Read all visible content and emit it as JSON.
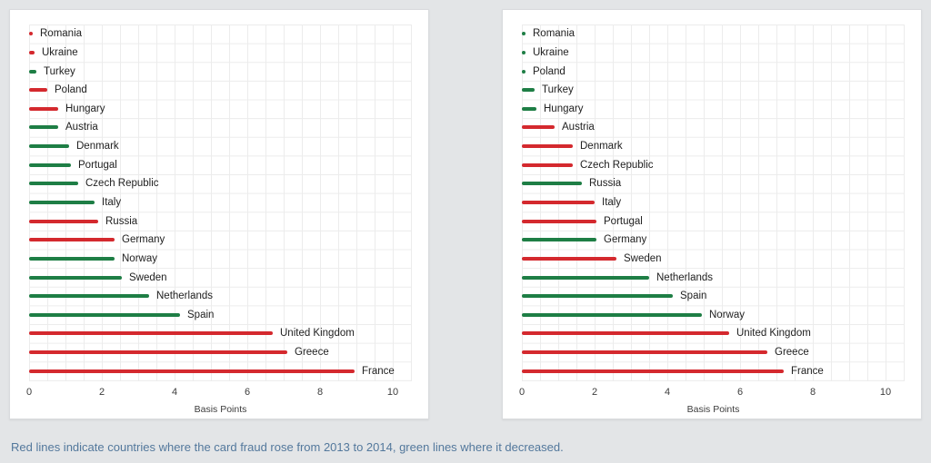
{
  "page": {
    "background": "#e3e5e7",
    "caption": "Red lines indicate countries where the card fraud rose from 2013 to 2014, green lines where it decreased."
  },
  "colors": {
    "rose": "#d4292e",
    "decreased": "#1e7e45",
    "grid": "#ececec",
    "label_text": "#212121",
    "tick_text": "#3c3c3c",
    "caption_text": "#53789c",
    "panel_bg": "#ffffff"
  },
  "chart_data": [
    {
      "type": "bar",
      "orientation": "horizontal",
      "title": "",
      "xlabel": "Basis Points",
      "ylabel": "",
      "xlim": [
        0,
        10.5
      ],
      "x_ticks": [
        0,
        2,
        4,
        6,
        8,
        10
      ],
      "grid_step": 0.5,
      "legend_position": "none",
      "rows": [
        {
          "country": "Romania",
          "value": 0.1,
          "trend": "rose"
        },
        {
          "country": "Ukraine",
          "value": 0.15,
          "trend": "rose"
        },
        {
          "country": "Turkey",
          "value": 0.2,
          "trend": "decreased"
        },
        {
          "country": "Poland",
          "value": 0.5,
          "trend": "rose"
        },
        {
          "country": "Hungary",
          "value": 0.8,
          "trend": "rose"
        },
        {
          "country": "Austria",
          "value": 0.8,
          "trend": "decreased"
        },
        {
          "country": "Denmark",
          "value": 1.1,
          "trend": "decreased"
        },
        {
          "country": "Portugal",
          "value": 1.15,
          "trend": "decreased"
        },
        {
          "country": "Czech Republic",
          "value": 1.35,
          "trend": "decreased"
        },
        {
          "country": "Italy",
          "value": 1.8,
          "trend": "decreased"
        },
        {
          "country": "Russia",
          "value": 1.9,
          "trend": "rose"
        },
        {
          "country": "Germany",
          "value": 2.35,
          "trend": "rose"
        },
        {
          "country": "Norway",
          "value": 2.35,
          "trend": "decreased"
        },
        {
          "country": "Sweden",
          "value": 2.55,
          "trend": "decreased"
        },
        {
          "country": "Netherlands",
          "value": 3.3,
          "trend": "decreased"
        },
        {
          "country": "Spain",
          "value": 4.15,
          "trend": "decreased"
        },
        {
          "country": "United Kingdom",
          "value": 6.7,
          "trend": "rose"
        },
        {
          "country": "Greece",
          "value": 7.1,
          "trend": "rose"
        },
        {
          "country": "France",
          "value": 8.95,
          "trend": "rose"
        }
      ]
    },
    {
      "type": "bar",
      "orientation": "horizontal",
      "title": "",
      "xlabel": "Basis Points",
      "ylabel": "",
      "xlim": [
        0,
        10.5
      ],
      "x_ticks": [
        0,
        2,
        4,
        6,
        8,
        10
      ],
      "grid_step": 0.5,
      "legend_position": "none",
      "rows": [
        {
          "country": "Romania",
          "value": 0.05,
          "trend": "decreased"
        },
        {
          "country": "Ukraine",
          "value": 0.1,
          "trend": "decreased"
        },
        {
          "country": "Poland",
          "value": 0.1,
          "trend": "decreased"
        },
        {
          "country": "Turkey",
          "value": 0.35,
          "trend": "decreased"
        },
        {
          "country": "Hungary",
          "value": 0.4,
          "trend": "decreased"
        },
        {
          "country": "Austria",
          "value": 0.9,
          "trend": "rose"
        },
        {
          "country": "Denmark",
          "value": 1.4,
          "trend": "rose"
        },
        {
          "country": "Czech Republic",
          "value": 1.4,
          "trend": "rose"
        },
        {
          "country": "Russia",
          "value": 1.65,
          "trend": "decreased"
        },
        {
          "country": "Italy",
          "value": 2.0,
          "trend": "rose"
        },
        {
          "country": "Portugal",
          "value": 2.05,
          "trend": "rose"
        },
        {
          "country": "Germany",
          "value": 2.05,
          "trend": "decreased"
        },
        {
          "country": "Sweden",
          "value": 2.6,
          "trend": "rose"
        },
        {
          "country": "Netherlands",
          "value": 3.5,
          "trend": "decreased"
        },
        {
          "country": "Spain",
          "value": 4.15,
          "trend": "decreased"
        },
        {
          "country": "Norway",
          "value": 4.95,
          "trend": "decreased"
        },
        {
          "country": "United Kingdom",
          "value": 5.7,
          "trend": "rose"
        },
        {
          "country": "Greece",
          "value": 6.75,
          "trend": "rose"
        },
        {
          "country": "France",
          "value": 7.2,
          "trend": "rose"
        }
      ]
    }
  ]
}
